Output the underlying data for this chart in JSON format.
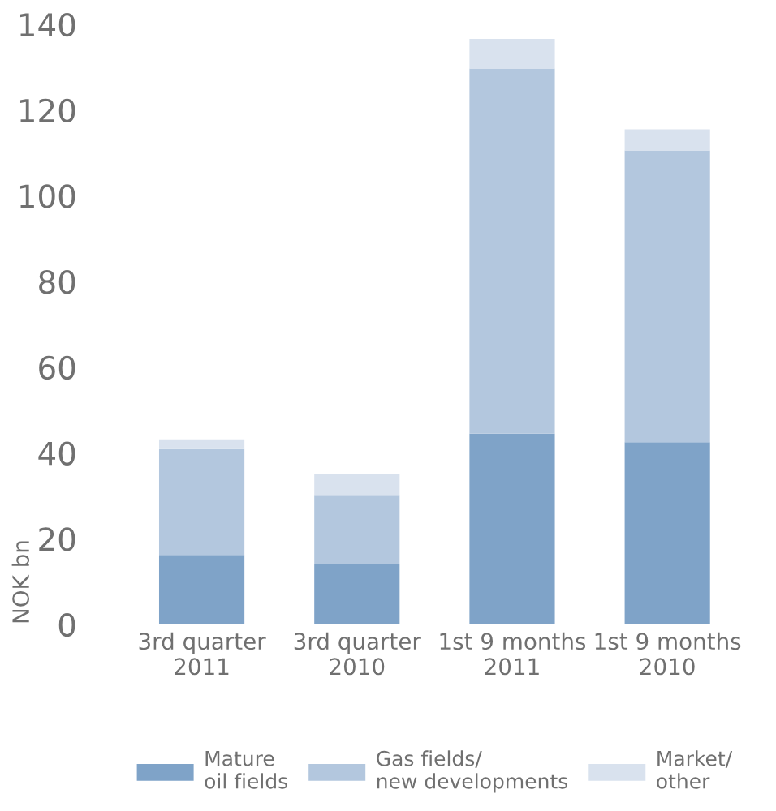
{
  "chart_data": {
    "type": "bar",
    "stacked": true,
    "ylabel": "NOK bn",
    "categories": [
      "3rd quarter\n2011",
      "3rd quarter\n2010",
      "1st 9 months\n2011",
      "1st 9 months\n2010"
    ],
    "series": [
      {
        "name": "Mature\noil fields",
        "color": "#7fa3c8",
        "values": [
          16.2,
          14.2,
          44.5,
          42.5
        ]
      },
      {
        "name": "Gas fields/\nnew developments",
        "color": "#b3c7de",
        "values": [
          24.7,
          16,
          85.2,
          68.1
        ]
      },
      {
        "name": "Market/\nother",
        "color": "#d9e2ee",
        "values": [
          2.3,
          5,
          6.9,
          4.9
        ]
      }
    ],
    "ylim": [
      0,
      140
    ],
    "yticks": [
      0,
      20,
      40,
      60,
      80,
      100,
      120,
      140
    ],
    "legend": "bottom"
  }
}
